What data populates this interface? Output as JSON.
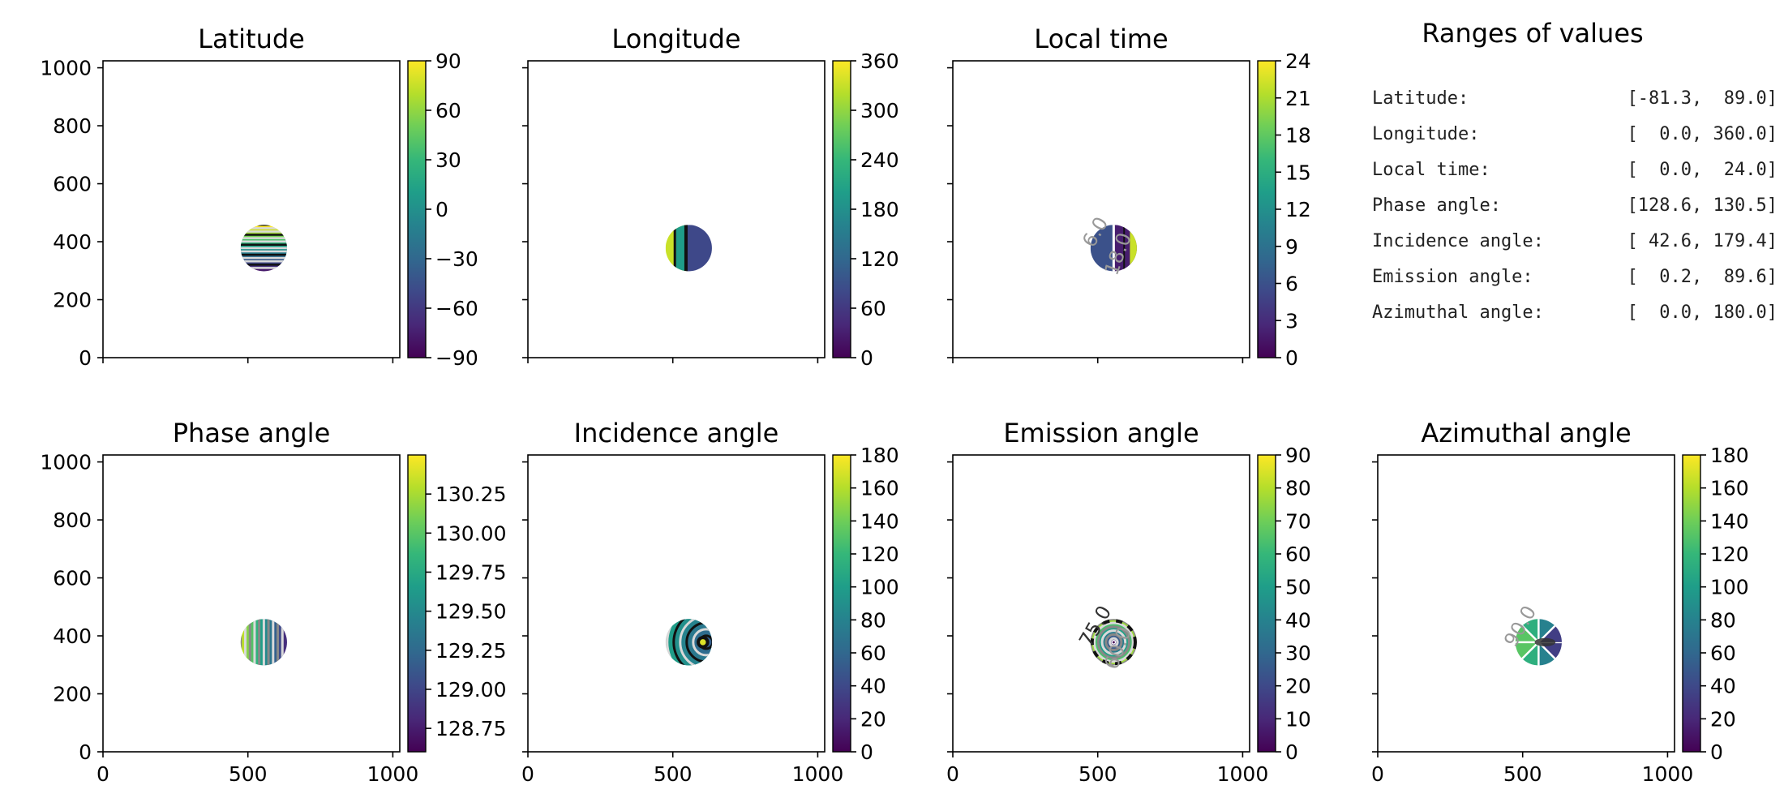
{
  "colors": {
    "viridis": [
      "#440154",
      "#482878",
      "#3e4989",
      "#31688e",
      "#26828e",
      "#1f9e89",
      "#35b779",
      "#6ece58",
      "#b5de2b",
      "#fde725"
    ],
    "axis": "#000000",
    "contour_light": "#d9d9d9",
    "contour_dark": "#111111",
    "contour_gray": "#888888"
  },
  "ranges_panel": {
    "title": "Ranges of values",
    "rows": [
      {
        "name": "Latitude:",
        "range": "[-81.3,  89.0]"
      },
      {
        "name": "Longitude:",
        "range": "[  0.0, 360.0]"
      },
      {
        "name": "Local time:",
        "range": "[  0.0,  24.0]"
      },
      {
        "name": "Phase angle:",
        "range": "[128.6, 130.5]"
      },
      {
        "name": "Incidence angle:",
        "range": "[ 42.6, 179.4]"
      },
      {
        "name": "Emission angle:",
        "range": "[  0.2,  89.6]"
      },
      {
        "name": "Azimuthal angle:",
        "range": "[  0.0, 180.0]"
      }
    ]
  },
  "chart_data": [
    {
      "type": "heatmap",
      "title": "Latitude",
      "xlim": [
        0,
        1024
      ],
      "ylim": [
        0,
        1024
      ],
      "xticks": [
        0,
        500,
        1000
      ],
      "yticks": [
        0,
        200,
        400,
        600,
        800,
        1000
      ],
      "xtick_labels_shown": false,
      "ytick_labels_shown": true,
      "disk": {
        "cx": 555,
        "cy": 378,
        "r": 80
      },
      "pattern": "horizontal-bands",
      "colorbar": {
        "vmin": -90,
        "vmax": 90,
        "ticks": [
          90,
          60,
          30,
          0,
          -30,
          -60,
          -90
        ],
        "tick_labels": [
          "90",
          "60",
          "30",
          "0",
          "−30",
          "−60",
          "−90"
        ]
      }
    },
    {
      "type": "heatmap",
      "title": "Longitude",
      "xlim": [
        0,
        1024
      ],
      "ylim": [
        0,
        1024
      ],
      "xticks": [
        0,
        500,
        1000
      ],
      "yticks": [
        0,
        200,
        400,
        600,
        800,
        1000
      ],
      "xtick_labels_shown": false,
      "ytick_labels_shown": false,
      "disk": {
        "cx": 555,
        "cy": 378,
        "r": 80
      },
      "pattern": "vertical-halves",
      "colorbar": {
        "vmin": 0,
        "vmax": 360,
        "ticks": [
          360,
          300,
          240,
          180,
          120,
          60,
          0
        ],
        "tick_labels": [
          "360",
          "300",
          "240",
          "180",
          "120",
          "60",
          "0"
        ]
      }
    },
    {
      "type": "heatmap",
      "title": "Local time",
      "xlim": [
        0,
        1024
      ],
      "ylim": [
        0,
        1024
      ],
      "xticks": [
        0,
        500,
        1000
      ],
      "yticks": [
        0,
        200,
        400,
        600,
        800,
        1000
      ],
      "xtick_labels_shown": false,
      "ytick_labels_shown": false,
      "disk": {
        "cx": 555,
        "cy": 378,
        "r": 80
      },
      "pattern": "local-time",
      "contour_labels": [
        {
          "text": "6.0"
        },
        {
          "text": "18.0"
        }
      ],
      "colorbar": {
        "vmin": 0,
        "vmax": 24,
        "ticks": [
          24,
          21,
          18,
          15,
          12,
          9,
          6,
          3,
          0
        ],
        "tick_labels": [
          "24",
          "21",
          "18",
          "15",
          "12",
          "9",
          "6",
          "3",
          "0"
        ]
      }
    },
    {
      "type": "heatmap",
      "title": "Phase angle",
      "xlim": [
        0,
        1024
      ],
      "ylim": [
        0,
        1024
      ],
      "xticks": [
        0,
        500,
        1000
      ],
      "yticks": [
        0,
        200,
        400,
        600,
        800,
        1000
      ],
      "xtick_labels_shown": true,
      "ytick_labels_shown": true,
      "disk": {
        "cx": 555,
        "cy": 378,
        "r": 80
      },
      "pattern": "vertical-stripes",
      "colorbar": {
        "vmin": 128.6,
        "vmax": 130.5,
        "ticks": [
          130.25,
          130.0,
          129.75,
          129.5,
          129.25,
          129.0,
          128.75
        ],
        "tick_labels": [
          "130.25",
          "130.00",
          "129.75",
          "129.50",
          "129.25",
          "129.00",
          "128.75"
        ]
      }
    },
    {
      "type": "heatmap",
      "title": "Incidence angle",
      "xlim": [
        0,
        1024
      ],
      "ylim": [
        0,
        1024
      ],
      "xticks": [
        0,
        500,
        1000
      ],
      "yticks": [
        0,
        200,
        400,
        600,
        800,
        1000
      ],
      "xtick_labels_shown": true,
      "ytick_labels_shown": false,
      "disk": {
        "cx": 555,
        "cy": 378,
        "r": 80
      },
      "pattern": "incidence-rings",
      "colorbar": {
        "vmin": 0,
        "vmax": 180,
        "ticks": [
          180,
          160,
          140,
          120,
          100,
          80,
          60,
          40,
          20,
          0
        ],
        "tick_labels": [
          "180",
          "160",
          "140",
          "120",
          "100",
          "80",
          "60",
          "40",
          "20",
          "0"
        ]
      }
    },
    {
      "type": "heatmap",
      "title": "Emission angle",
      "xlim": [
        0,
        1024
      ],
      "ylim": [
        0,
        1024
      ],
      "xticks": [
        0,
        500,
        1000
      ],
      "yticks": [
        0,
        200,
        400,
        600,
        800,
        1000
      ],
      "xtick_labels_shown": true,
      "ytick_labels_shown": false,
      "disk": {
        "cx": 555,
        "cy": 378,
        "r": 80
      },
      "pattern": "concentric",
      "contour_labels": [
        {
          "text": "75.0"
        },
        {
          "text": "60.0"
        }
      ],
      "colorbar": {
        "vmin": 0,
        "vmax": 90,
        "ticks": [
          90,
          80,
          70,
          60,
          50,
          40,
          30,
          20,
          10,
          0
        ],
        "tick_labels": [
          "90",
          "80",
          "70",
          "60",
          "50",
          "40",
          "30",
          "20",
          "10",
          "0"
        ]
      }
    },
    {
      "type": "heatmap",
      "title": "Azimuthal angle",
      "xlim": [
        0,
        1024
      ],
      "ylim": [
        0,
        1024
      ],
      "xticks": [
        0,
        500,
        1000
      ],
      "yticks": [
        0,
        200,
        400,
        600,
        800,
        1000
      ],
      "xtick_labels_shown": true,
      "ytick_labels_shown": false,
      "disk": {
        "cx": 555,
        "cy": 378,
        "r": 80
      },
      "pattern": "azimuthal",
      "contour_labels": [
        {
          "text": "90.0"
        }
      ],
      "colorbar": {
        "vmin": 0,
        "vmax": 180,
        "ticks": [
          180,
          160,
          140,
          120,
          100,
          80,
          60,
          40,
          20,
          0
        ],
        "tick_labels": [
          "180",
          "160",
          "140",
          "120",
          "100",
          "80",
          "60",
          "40",
          "20",
          "0"
        ]
      }
    }
  ]
}
